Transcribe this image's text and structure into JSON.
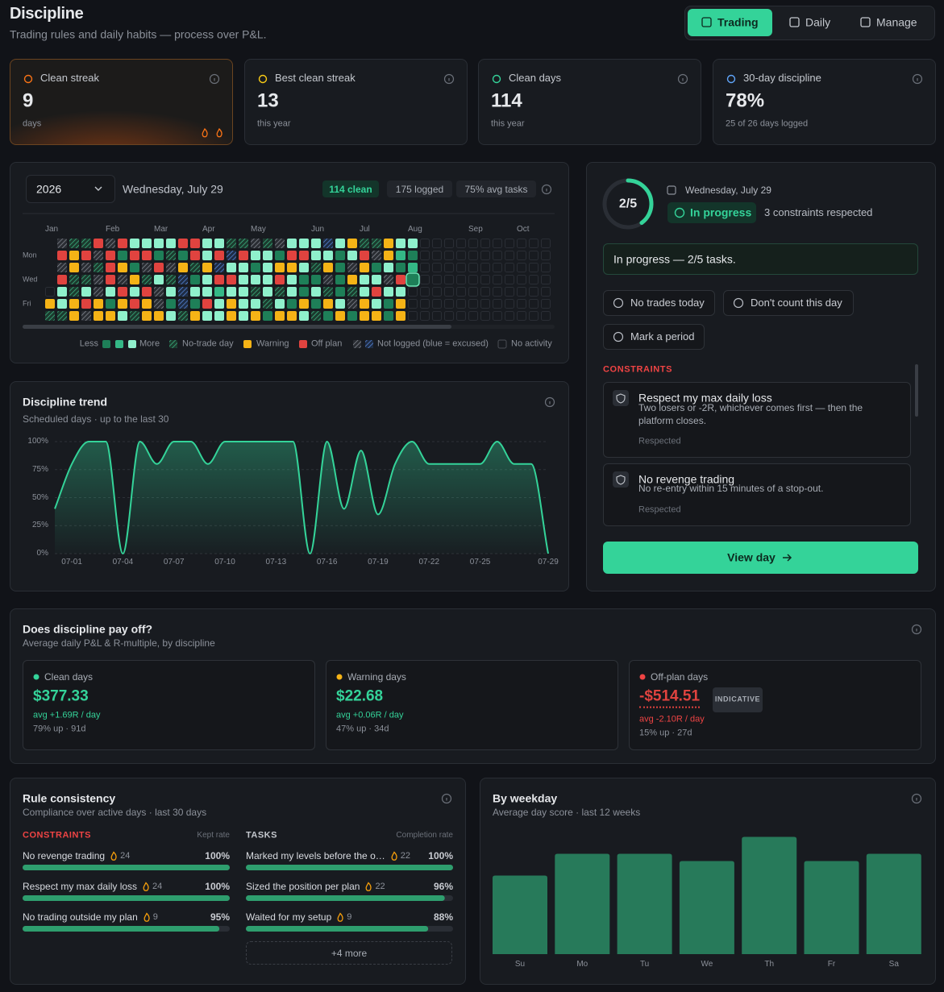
{
  "header": {
    "title": "Discipline",
    "subtitle": "Trading rules and daily habits — process over P&L."
  },
  "tabs": [
    "Trading",
    "Daily",
    "Manage"
  ],
  "stats": [
    {
      "label": "Clean streak",
      "value": "9",
      "note": "days"
    },
    {
      "label": "Best clean streak",
      "value": "13",
      "note": "this year"
    },
    {
      "label": "Clean days",
      "value": "114",
      "note": "this year"
    },
    {
      "label": "30-day discipline",
      "value": "78%",
      "note": "25 of 26 days logged"
    }
  ],
  "calendar": {
    "year": "2026",
    "date": "Wednesday, July 29",
    "badges": [
      "114 clean",
      "175 logged",
      "75% avg tasks"
    ],
    "months": [
      "Jan",
      "Feb",
      "Mar",
      "Apr",
      "May",
      "Jun",
      "Jul",
      "Aug",
      "Sep",
      "Oct"
    ],
    "days": [
      "Mon",
      "Wed",
      "Fri"
    ],
    "rows": [
      " xnnoxo3333oo33nnxnx333e3wnnw33............",
      " owoxo1oo1n1o3oeo331oo3313oxw21............",
      " xwxnow1xoxwnwe3313ww3nw1xw1312............",
      " onnxoxwn3ne13oo333o311x1w33xoT............",
      ".3n3x3o3ox3e33233n3n313n1n3o33.............",
      "w3wow1wowx1e1o3w33n31w1w3xw31w.............",
      "nnwxww3nww3nw33w3w1ww3n1w1ww1w............."
    ],
    "legend": {
      "less": "Less",
      "more": "More",
      "items": [
        "No-trade day",
        "Warning",
        "Off plan",
        "Not logged (blue = excused)",
        "No activity"
      ]
    }
  },
  "today": {
    "progress_label": "2/5",
    "done": 2,
    "total": 5,
    "date": "Wednesday, July 29",
    "status": "In progress",
    "respected": "3 constraints respected",
    "message": "In progress — 2/5 tasks.",
    "actions": [
      "No trades today",
      "Don't count this day",
      "Mark a period"
    ],
    "section": "CONSTRAINTS",
    "constraints": [
      {
        "title": "Respect my max daily loss",
        "desc": "Two losers or -2R, whichever comes first — then the platform closes.",
        "status": "Respected"
      },
      {
        "title": "No revenge trading",
        "desc": "No re-entry within 15 minutes of a stop-out.",
        "status": "Respected"
      }
    ],
    "button": "View day"
  },
  "chart_data": [
    {
      "type": "line",
      "title": "Discipline trend",
      "subtitle": "Scheduled days · up to the last 30",
      "categories": [
        null,
        "07-01",
        null,
        null,
        "07-04",
        null,
        null,
        "07-07",
        null,
        null,
        "07-10",
        null,
        null,
        "07-13",
        null,
        null,
        "07-16",
        null,
        null,
        "07-19",
        null,
        null,
        "07-22",
        null,
        null,
        "07-25",
        null,
        null,
        null,
        "07-29"
      ],
      "series": [
        {
          "name": "Discipline",
          "color": "#34d399",
          "values": [
            40,
            80,
            100,
            100,
            0,
            100,
            80,
            100,
            100,
            80,
            100,
            100,
            100,
            100,
            100,
            0,
            100,
            40,
            92,
            35,
            80,
            100,
            80,
            80,
            80,
            80,
            100,
            80,
            80,
            0
          ]
        }
      ],
      "ylim": [
        0,
        100
      ],
      "yticks": [
        {
          "value": 0,
          "label": "0%"
        },
        {
          "value": 25,
          "label": "25%"
        },
        {
          "value": 50,
          "label": "50%"
        },
        {
          "value": 75,
          "label": "75%"
        },
        {
          "value": 100,
          "label": "100%"
        }
      ],
      "grid": true
    },
    {
      "type": "bar",
      "title": "By weekday",
      "subtitle": "Average day score · last 12 weeks",
      "categories": [
        "Su",
        "Mo",
        "Tu",
        "We",
        "Th",
        "Fr",
        "Sa"
      ],
      "values": [
        65,
        83,
        83,
        77,
        97,
        77,
        83
      ],
      "color": "#277a5a",
      "ylim": [
        0,
        100
      ]
    }
  ],
  "payoff": {
    "title": "Does discipline pay off?",
    "subtitle": "Average daily P&L & R-multiple, by discipline",
    "badge": "INDICATIVE",
    "cards": [
      {
        "label": "Clean days",
        "value": "$377.33",
        "r": "avg +1.69R / day",
        "stats": "79% up · 91d"
      },
      {
        "label": "Warning days",
        "value": "$22.68",
        "r": "avg +0.06R / day",
        "stats": "47% up · 34d"
      },
      {
        "label": "Off-plan days",
        "value": "-$514.51",
        "r": "avg -2.10R / day",
        "stats": "15% up · 27d"
      }
    ]
  },
  "rules": {
    "title": "Rule consistency",
    "subtitle": "Compliance over active days · last 30 days",
    "constraints": {
      "heading": "CONSTRAINTS",
      "rate": "Kept rate",
      "items": [
        {
          "name": "No revenge trading",
          "streak": 24,
          "value": 100,
          "label": "100%"
        },
        {
          "name": "Respect my max daily loss",
          "streak": 24,
          "value": 100,
          "label": "100%"
        },
        {
          "name": "No trading outside my plan",
          "streak": 9,
          "value": 95,
          "label": "95%"
        }
      ]
    },
    "tasks": {
      "heading": "TASKS",
      "rate": "Completion rate",
      "items": [
        {
          "name": "Marked my levels before the o…",
          "streak": 22,
          "value": 100,
          "label": "100%"
        },
        {
          "name": "Sized the position per plan",
          "streak": 22,
          "value": 96,
          "label": "96%"
        },
        {
          "name": "Waited for my setup",
          "streak": 9,
          "value": 88,
          "label": "88%"
        }
      ],
      "more": "+4 more"
    }
  }
}
